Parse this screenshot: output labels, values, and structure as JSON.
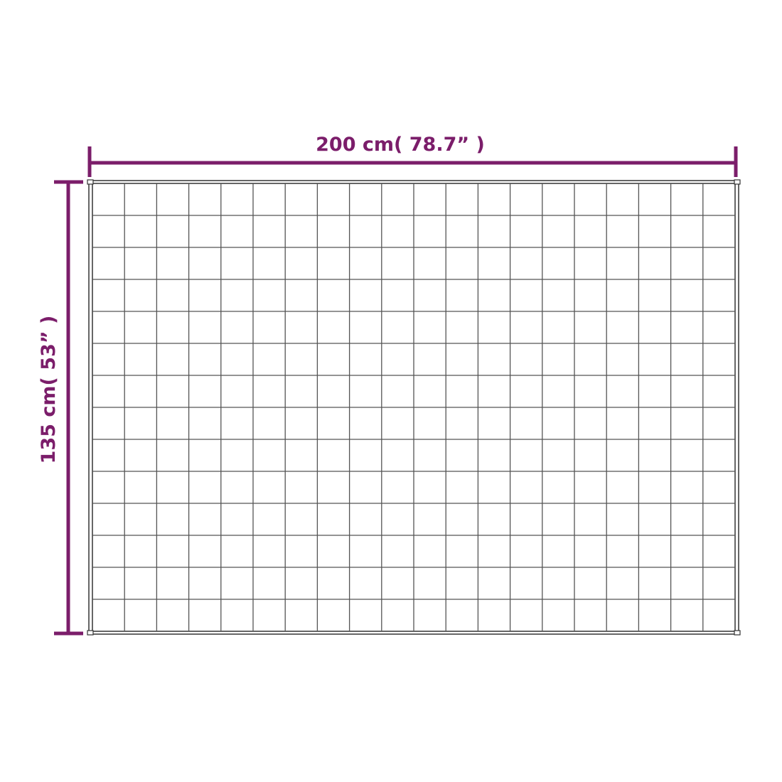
{
  "dimensions": {
    "width_label": "200 cm( 78.7”  )",
    "height_label": "135 cm( 53”  )"
  },
  "quilt_grid": {
    "columns": 20,
    "rows": 14
  },
  "colors": {
    "dimension": "#7b1d6a",
    "outline": "#333333",
    "grid": "#555555"
  }
}
